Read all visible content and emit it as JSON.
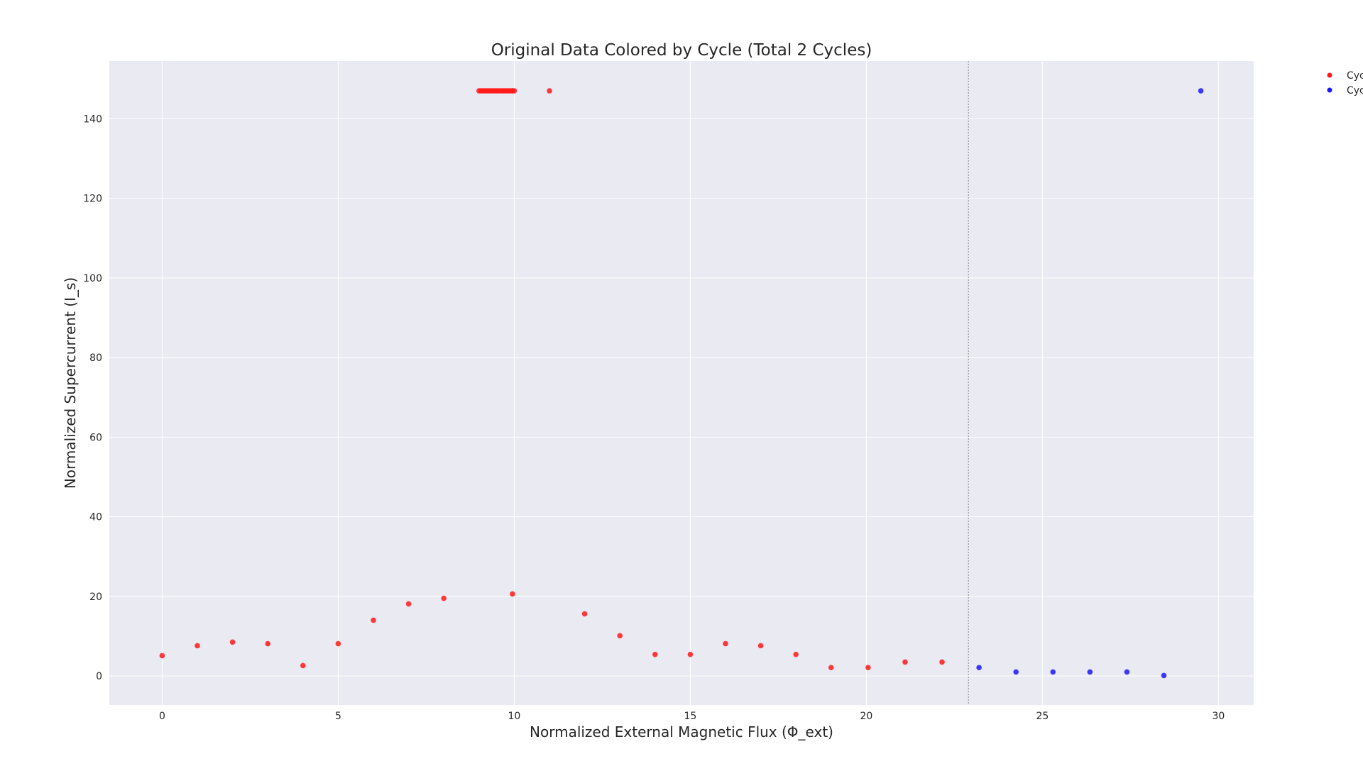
{
  "chart_data": {
    "type": "scatter",
    "title": "Original Data Colored by Cycle (Total 2 Cycles)",
    "xlabel": "Normalized External Magnetic Flux (Φ_ext)",
    "ylabel": "Normalized Supercurrent (I_s)",
    "xlim": [
      -1.5,
      31
    ],
    "ylim": [
      -7.3,
      154.5
    ],
    "xticks": [
      0,
      5,
      10,
      15,
      20,
      25,
      30
    ],
    "yticks": [
      0,
      20,
      40,
      60,
      80,
      100,
      120,
      140
    ],
    "grid": true,
    "cycle_boundary_x": 22.9,
    "legend": {
      "placement": "outside top-right",
      "entries": [
        "Cyc",
        "Cyc"
      ]
    },
    "series": [
      {
        "name": "Cyc",
        "color": "#ff1a1a",
        "points": [
          [
            0,
            5.1
          ],
          [
            1,
            7.6
          ],
          [
            2,
            8.5
          ],
          [
            3,
            8.1
          ],
          [
            4,
            2.6
          ],
          [
            5,
            8.1
          ],
          [
            6,
            14.0
          ],
          [
            7,
            18.1
          ],
          [
            8,
            19.5
          ],
          [
            9.0,
            147
          ],
          [
            9.05,
            147
          ],
          [
            9.1,
            147
          ],
          [
            9.15,
            147
          ],
          [
            9.2,
            147
          ],
          [
            9.25,
            147
          ],
          [
            9.3,
            147
          ],
          [
            9.35,
            147
          ],
          [
            9.4,
            147
          ],
          [
            9.45,
            147
          ],
          [
            9.5,
            147
          ],
          [
            9.55,
            147
          ],
          [
            9.6,
            147
          ],
          [
            9.65,
            147
          ],
          [
            9.7,
            147
          ],
          [
            9.75,
            147
          ],
          [
            9.8,
            147
          ],
          [
            9.85,
            147
          ],
          [
            9.9,
            147
          ],
          [
            9.95,
            147
          ],
          [
            10.0,
            147
          ],
          [
            9.95,
            20.6
          ],
          [
            11,
            147
          ],
          [
            12,
            15.6
          ],
          [
            13,
            10.1
          ],
          [
            14,
            5.4
          ],
          [
            15,
            5.4
          ],
          [
            16,
            8.1
          ],
          [
            17,
            7.6
          ],
          [
            18,
            5.4
          ],
          [
            19,
            2.1
          ],
          [
            20.05,
            2.1
          ],
          [
            21.1,
            3.5
          ],
          [
            22.15,
            3.5
          ]
        ]
      },
      {
        "name": "Cyc",
        "color": "#1a1aff",
        "points": [
          [
            23.2,
            2.1
          ],
          [
            24.25,
            1.0
          ],
          [
            25.3,
            1.0
          ],
          [
            26.35,
            1.0
          ],
          [
            27.4,
            1.0
          ],
          [
            28.45,
            0.1
          ],
          [
            29.5,
            147
          ]
        ]
      }
    ]
  }
}
